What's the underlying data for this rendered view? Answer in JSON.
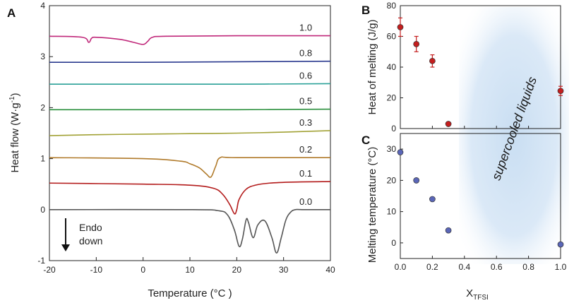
{
  "chart_data": [
    {
      "panel": "A",
      "type": "line",
      "title": "",
      "xlabel": "Temperature  (°C )",
      "ylabel": "Heat flow  (W·g",
      "ylabel_sup": "-1",
      "ylabel_tail": ")",
      "xlim": [
        -20,
        40
      ],
      "ylim": [
        -1,
        4
      ],
      "x_ticks": [
        -20,
        -10,
        0,
        10,
        20,
        30,
        40
      ],
      "y_ticks": [
        -1,
        0,
        1,
        2,
        3,
        4
      ],
      "annotation": [
        "Endo",
        "down"
      ],
      "series": [
        {
          "name": "0.0",
          "color": "#555555",
          "x": [
            -20,
            10,
            16,
            18,
            19.5,
            20.5,
            21.2,
            22,
            22.5,
            23.5,
            24.5,
            26,
            27.5,
            28.5,
            29.5,
            30.5,
            31.5,
            32.5,
            34,
            40
          ],
          "y": [
            0.0,
            0.0,
            -0.02,
            -0.1,
            -0.4,
            -0.72,
            -0.58,
            -0.2,
            -0.25,
            -0.55,
            -0.3,
            -0.22,
            -0.55,
            -0.85,
            -0.55,
            -0.2,
            -0.05,
            0.0,
            0.0,
            0.0
          ]
        },
        {
          "name": "0.1",
          "color": "#b31b1b",
          "x": [
            -20,
            0,
            10,
            15,
            17,
            18.5,
            19.5,
            20,
            20.5,
            22,
            24,
            27,
            32,
            40
          ],
          "y": [
            0.52,
            0.5,
            0.48,
            0.42,
            0.3,
            0.1,
            -0.08,
            0.0,
            0.2,
            0.4,
            0.48,
            0.52,
            0.54,
            0.55
          ]
        },
        {
          "name": "0.2",
          "color": "#b07a2a",
          "x": [
            -20,
            0,
            8,
            10,
            12,
            13.5,
            14.5,
            15.5,
            16.5,
            20,
            40
          ],
          "y": [
            1.02,
            1.0,
            0.95,
            0.9,
            0.82,
            0.7,
            0.64,
            0.85,
            1.02,
            1.02,
            1.02
          ]
        },
        {
          "name": "0.3",
          "color": "#a2a236",
          "x": [
            -20,
            -10,
            0,
            10,
            20,
            30,
            40
          ],
          "y": [
            1.45,
            1.47,
            1.48,
            1.49,
            1.5,
            1.52,
            1.55
          ]
        },
        {
          "name": "0.5",
          "color": "#2a8f3c",
          "x": [
            -20,
            0,
            20,
            40
          ],
          "y": [
            1.96,
            1.96,
            1.96,
            1.97
          ]
        },
        {
          "name": "0.6",
          "color": "#2aa198",
          "x": [
            -20,
            0,
            20,
            40
          ],
          "y": [
            2.46,
            2.46,
            2.46,
            2.47
          ]
        },
        {
          "name": "0.8",
          "color": "#2b3a8f",
          "x": [
            -20,
            0,
            20,
            40
          ],
          "y": [
            2.89,
            2.89,
            2.9,
            2.91
          ]
        },
        {
          "name": "1.0",
          "color": "#c0287a",
          "x": [
            -20,
            -13,
            -11.6,
            -11,
            -10,
            -5,
            -2,
            0,
            1,
            2,
            5,
            20,
            40
          ],
          "y": [
            3.4,
            3.38,
            3.28,
            3.36,
            3.38,
            3.34,
            3.28,
            3.24,
            3.3,
            3.38,
            3.4,
            3.41,
            3.41
          ]
        }
      ]
    },
    {
      "panel": "B",
      "type": "scatter",
      "xlabel": "",
      "ylabel": "Heat of melting (J/g)",
      "xlim": [
        0.0,
        1.0
      ],
      "ylim": [
        0,
        80
      ],
      "y_ticks": [
        0,
        20,
        40,
        60,
        80
      ],
      "marker_color": "#c41e1e",
      "points": [
        {
          "x": 0.0,
          "y": 66,
          "err": 6
        },
        {
          "x": 0.1,
          "y": 55,
          "err": 5
        },
        {
          "x": 0.2,
          "y": 44,
          "err": 4
        },
        {
          "x": 0.3,
          "y": 3,
          "err": 0
        },
        {
          "x": 1.0,
          "y": 24.5,
          "err": 3
        }
      ],
      "shaded_region": [
        0.33,
        0.92
      ],
      "shaded_label": "supercooled liquids"
    },
    {
      "panel": "C",
      "type": "scatter",
      "xlabel": "X",
      "xlabel_sub": "TFSI",
      "ylabel": "Melting temperature  (°C)",
      "xlim": [
        0.0,
        1.0
      ],
      "ylim": [
        -5,
        35
      ],
      "x_ticks": [
        "0.0",
        "0.2",
        "0.4",
        "0.6",
        "0.8",
        "1.0"
      ],
      "y_ticks": [
        0,
        10,
        20,
        30
      ],
      "marker_color": "#5a66b8",
      "points": [
        {
          "x": 0.0,
          "y": 29
        },
        {
          "x": 0.1,
          "y": 20
        },
        {
          "x": 0.2,
          "y": 14
        },
        {
          "x": 0.3,
          "y": 4
        },
        {
          "x": 1.0,
          "y": -0.5
        }
      ],
      "shaded_region": [
        0.33,
        0.92
      ]
    }
  ]
}
